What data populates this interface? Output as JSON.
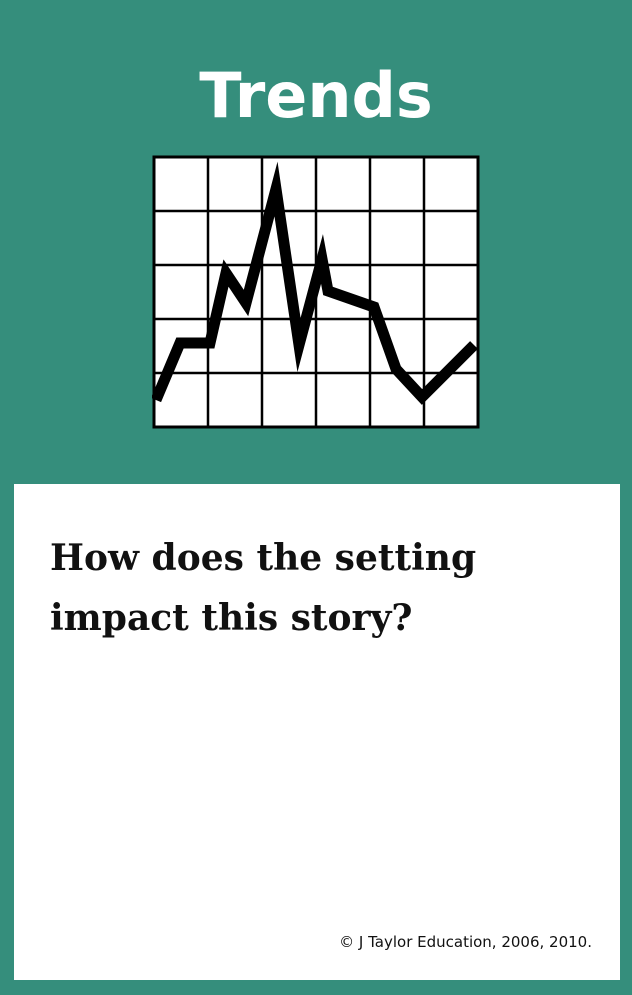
{
  "card": {
    "title": "Trends",
    "icon": "line-graph-icon",
    "question": "How does the setting impact this story?",
    "copyright": "© J Taylor Education, 2006, 2010."
  },
  "colors": {
    "background": "#358e7c",
    "panel": "#ffffff",
    "text_title": "#ffffff",
    "text_body": "#111111",
    "graph_stroke": "#000000"
  }
}
